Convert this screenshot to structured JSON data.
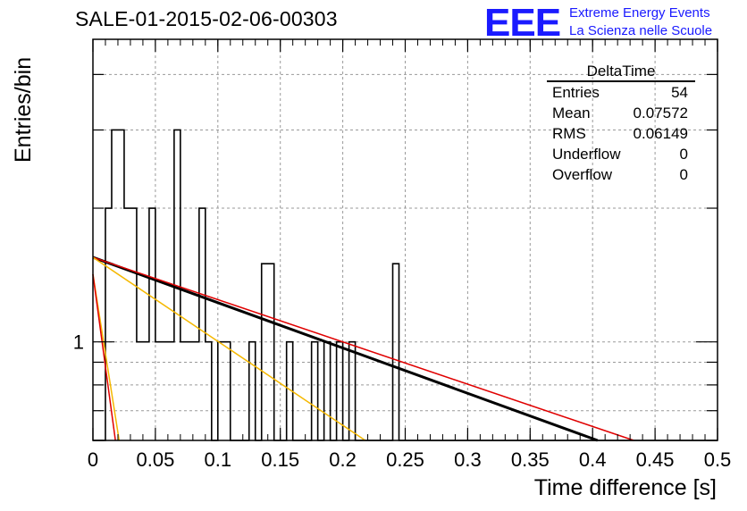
{
  "header": {
    "run_title": "SALE-01-2015-02-06-00303",
    "logo_mark": "EEE",
    "logo_line1": "Extreme Energy Events",
    "logo_line2": "La Scienza nelle Scuole"
  },
  "stats": {
    "title": "DeltaTime",
    "rows": [
      {
        "label": "Entries",
        "value": "54"
      },
      {
        "label": "Mean",
        "value": "0.07572"
      },
      {
        "label": "RMS",
        "value": "0.06149"
      },
      {
        "label": "Underflow",
        "value": "0"
      },
      {
        "label": "Overflow",
        "value": "0"
      }
    ]
  },
  "chart_data": {
    "type": "histogram",
    "title": "SALE-01-2015-02-06-00303",
    "xlabel": "Time difference [s]",
    "ylabel": "Entries/bin",
    "log_y": true,
    "grid": true,
    "xlim": [
      0,
      0.5
    ],
    "ylim": [
      0.6,
      4.8
    ],
    "x_ticks": [
      "0",
      "0.05",
      "0.1",
      "0.15",
      "0.2",
      "0.25",
      "0.3",
      "0.35",
      "0.4",
      "0.45",
      "0.5"
    ],
    "y_tick_labels": [
      {
        "value": 1,
        "label": "1"
      }
    ],
    "bin_width": 0.005,
    "bins": [
      {
        "x": 0.01,
        "count": 2
      },
      {
        "x": 0.015,
        "count": 3
      },
      {
        "x": 0.02,
        "count": 3
      },
      {
        "x": 0.025,
        "count": 2
      },
      {
        "x": 0.03,
        "count": 2
      },
      {
        "x": 0.035,
        "count": 1
      },
      {
        "x": 0.04,
        "count": 1
      },
      {
        "x": 0.045,
        "count": 2
      },
      {
        "x": 0.05,
        "count": 1
      },
      {
        "x": 0.055,
        "count": 1
      },
      {
        "x": 0.06,
        "count": 1
      },
      {
        "x": 0.065,
        "count": 3
      },
      {
        "x": 0.07,
        "count": 1
      },
      {
        "x": 0.075,
        "count": 1
      },
      {
        "x": 0.08,
        "count": 1
      },
      {
        "x": 0.085,
        "count": 2
      },
      {
        "x": 0.09,
        "count": 1
      },
      {
        "x": 0.1,
        "count": 1
      },
      {
        "x": 0.105,
        "count": 1
      },
      {
        "x": 0.125,
        "count": 1
      },
      {
        "x": 0.135,
        "count": 1.5
      },
      {
        "x": 0.14,
        "count": 1.5
      },
      {
        "x": 0.155,
        "count": 1
      },
      {
        "x": 0.175,
        "count": 1
      },
      {
        "x": 0.185,
        "count": 1
      },
      {
        "x": 0.195,
        "count": 1
      },
      {
        "x": 0.205,
        "count": 1
      },
      {
        "x": 0.24,
        "count": 1.5
      }
    ],
    "series": [
      {
        "color": "#000000",
        "width": 3,
        "x": [
          0,
          0.404
        ],
        "y": [
          1.55,
          0.6
        ]
      },
      {
        "color": "#e00000",
        "width": 1.5,
        "x": [
          0,
          0.433
        ],
        "y": [
          1.55,
          0.6
        ]
      },
      {
        "color": "#f5b800",
        "width": 1.5,
        "x": [
          0,
          0.218
        ],
        "y": [
          1.55,
          0.6
        ]
      },
      {
        "color": "#f5b800",
        "width": 1.5,
        "x": [
          0,
          0.021
        ],
        "y": [
          1.42,
          0.6
        ]
      },
      {
        "color": "#e00000",
        "width": 1.5,
        "x": [
          0,
          0.018
        ],
        "y": [
          1.42,
          0.6
        ]
      }
    ]
  }
}
